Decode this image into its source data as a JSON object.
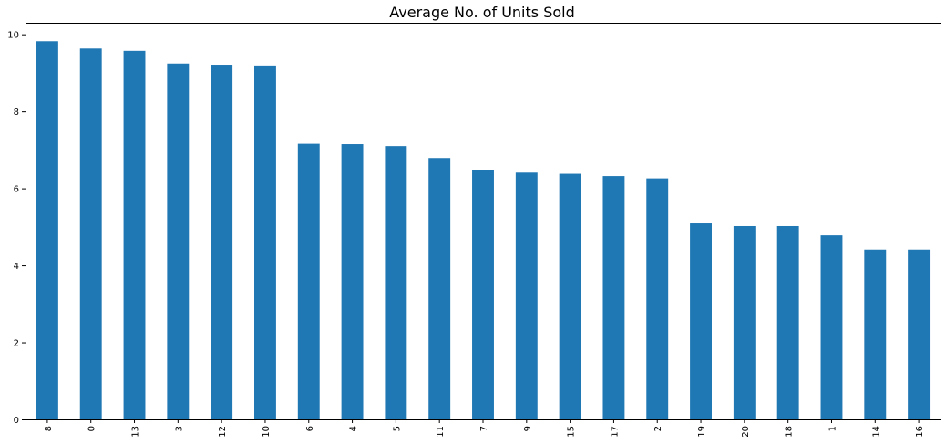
{
  "chart_data": {
    "type": "bar",
    "title": "Average No. of Units Sold",
    "xlabel": "",
    "ylabel": "",
    "categories": [
      "8",
      "0",
      "13",
      "3",
      "12",
      "10",
      "6",
      "4",
      "5",
      "11",
      "7",
      "9",
      "15",
      "17",
      "2",
      "19",
      "20",
      "18",
      "1",
      "14",
      "16"
    ],
    "values": [
      9.82,
      9.63,
      9.57,
      9.24,
      9.21,
      9.19,
      7.16,
      7.15,
      7.1,
      6.79,
      6.47,
      6.41,
      6.38,
      6.32,
      6.26,
      5.09,
      5.02,
      5.02,
      4.78,
      4.41,
      4.41
    ],
    "ylim": [
      0,
      10.3
    ],
    "yticks": [
      0,
      2,
      4,
      6,
      8,
      10
    ],
    "bar_color": "#1f77b4",
    "grid": false,
    "legend": "none"
  }
}
